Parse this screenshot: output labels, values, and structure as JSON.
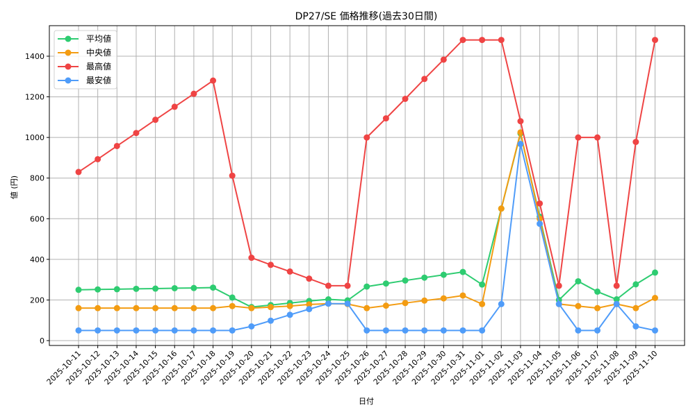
{
  "chart_data": {
    "type": "line",
    "title": "DP27/SE 価格推移(過去30日間)",
    "xlabel": "日付",
    "ylabel": "値 (円)",
    "ylim": [
      0,
      1550
    ],
    "yticks": [
      0,
      200,
      400,
      600,
      800,
      1000,
      1200,
      1400
    ],
    "grid": true,
    "legend_position": "upper left",
    "x": [
      "2025-10-11",
      "2025-10-12",
      "2025-10-13",
      "2025-10-14",
      "2025-10-15",
      "2025-10-16",
      "2025-10-17",
      "2025-10-18",
      "2025-10-19",
      "2025-10-20",
      "2025-10-21",
      "2025-10-22",
      "2025-10-23",
      "2025-10-24",
      "2025-10-25",
      "2025-10-26",
      "2025-10-27",
      "2025-10-28",
      "2025-10-29",
      "2025-10-30",
      "2025-10-31",
      "2025-11-01",
      "2025-11-02",
      "2025-11-03",
      "2025-11-04",
      "2025-11-05",
      "2025-11-06",
      "2025-11-07",
      "2025-11-08",
      "2025-11-09",
      "2025-11-10"
    ],
    "series": [
      {
        "name": "平均値",
        "color": "#2ecc71",
        "values": [
          250,
          252,
          253,
          255,
          256,
          258,
          259,
          261,
          212,
          165,
          175,
          185,
          195,
          203,
          198,
          266,
          281,
          296,
          310,
          324,
          338,
          276,
          650,
          1020,
          610,
          200,
          292,
          241,
          203,
          277,
          335
        ]
      },
      {
        "name": "中央値",
        "color": "#f39c12",
        "values": [
          160,
          160,
          160,
          160,
          160,
          160,
          160,
          160,
          170,
          160,
          165,
          170,
          178,
          182,
          180,
          160,
          172,
          185,
          197,
          208,
          222,
          180,
          650,
          1025,
          600,
          180,
          170,
          160,
          180,
          160,
          210
        ]
      },
      {
        "name": "最高値",
        "color": "#ef4444",
        "values": [
          830,
          893,
          958,
          1022,
          1087,
          1151,
          1215,
          1280,
          812,
          408,
          373,
          340,
          305,
          270,
          270,
          1000,
          1094,
          1190,
          1288,
          1383,
          1480,
          1480,
          1480,
          1080,
          675,
          270,
          1000,
          1000,
          270,
          978,
          1480
        ]
      },
      {
        "name": "最安値",
        "color": "#4f9cf9",
        "values": [
          50,
          50,
          50,
          50,
          50,
          50,
          50,
          50,
          50,
          70,
          98,
          127,
          155,
          182,
          182,
          50,
          50,
          50,
          50,
          50,
          50,
          50,
          180,
          968,
          575,
          180,
          50,
          50,
          180,
          70,
          50
        ]
      }
    ]
  }
}
